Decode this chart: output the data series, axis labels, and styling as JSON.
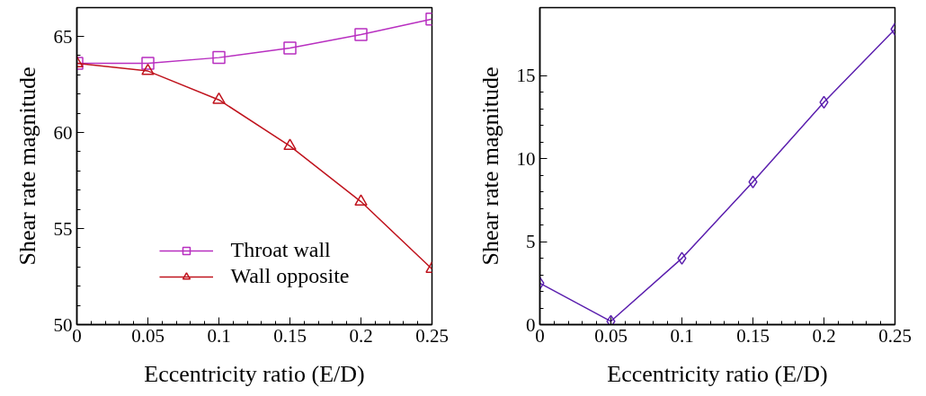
{
  "chart_data": [
    {
      "type": "line",
      "xlabel": "Eccentricity ratio (E/D)",
      "ylabel": "Shear rate magnitude",
      "x": [
        0,
        0.05,
        0.1,
        0.15,
        0.2,
        0.25
      ],
      "xlim": [
        0,
        0.25
      ],
      "xticks": [
        0,
        0.05,
        0.1,
        0.15,
        0.2,
        0.25
      ],
      "ylim": [
        50,
        66.5
      ],
      "yticks": [
        50,
        55,
        60,
        65
      ],
      "grid": false,
      "legend": "bottom",
      "line_style": "solid",
      "series": [
        {
          "name": "Throat wall",
          "color": "#b82fc0",
          "marker": "square",
          "values": [
            63.6,
            63.6,
            63.9,
            64.4,
            65.1,
            65.9
          ]
        },
        {
          "name": "Wall opposite",
          "color": "#c0141e",
          "marker": "triangle",
          "values": [
            63.6,
            63.2,
            61.7,
            59.3,
            56.4,
            52.9
          ]
        }
      ]
    },
    {
      "type": "line",
      "xlabel": "Eccentricity ratio (E/D)",
      "ylabel": "Shear rate magnitude",
      "x": [
        0,
        0.05,
        0.1,
        0.15,
        0.2,
        0.25
      ],
      "xlim": [
        0,
        0.25
      ],
      "xticks": [
        0,
        0.05,
        0.1,
        0.15,
        0.2,
        0.25
      ],
      "ylim": [
        0,
        19.1
      ],
      "yticks": [
        0,
        5,
        10,
        15
      ],
      "grid": false,
      "legend": false,
      "line_style": "solid",
      "series": [
        {
          "color": "#5b1fae",
          "marker": "diamond",
          "values": [
            2.5,
            0.2,
            4.0,
            8.6,
            13.4,
            17.8
          ]
        }
      ]
    }
  ]
}
